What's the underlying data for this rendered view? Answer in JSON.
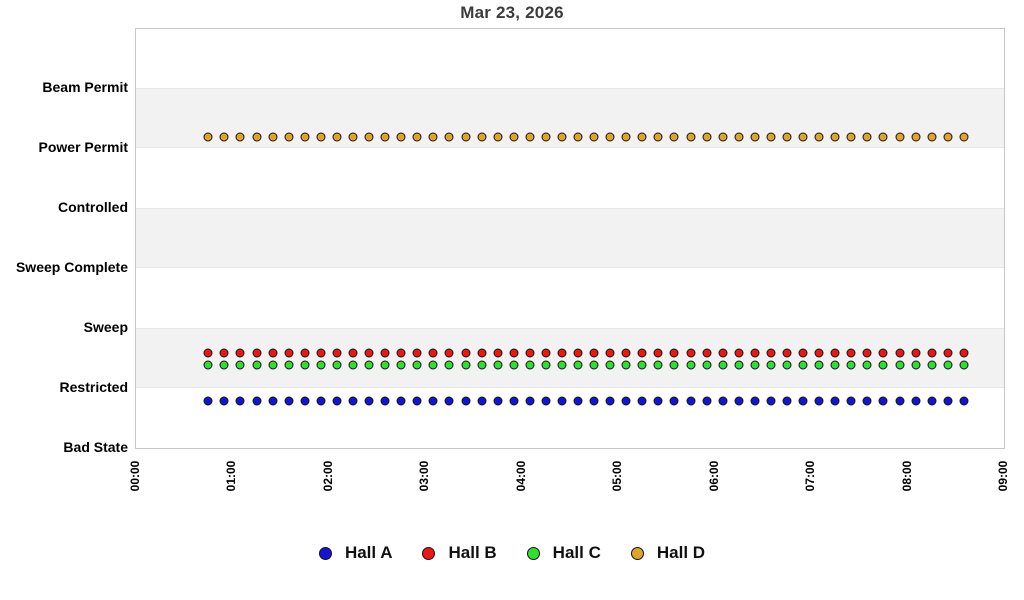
{
  "chart_data": {
    "type": "scatter",
    "title": "Mar 23, 2026",
    "x_axis": {
      "label": "",
      "tick_labels": [
        "00:00",
        "01:00",
        "02:00",
        "03:00",
        "04:00",
        "05:00",
        "06:00",
        "07:00",
        "08:00",
        "09:00"
      ],
      "range_minutes": [
        0,
        540
      ],
      "tick_interval_minutes": 60,
      "grid": false
    },
    "y_axis": {
      "label": "",
      "categories_bottom_to_top": [
        "Bad State",
        "Restricted",
        "Sweep",
        "Sweep Complete",
        "Controlled",
        "Power Permit",
        "Beam Permit"
      ],
      "range_levels": [
        0,
        7
      ],
      "striped_level_bands": [
        [
          1,
          2
        ],
        [
          3,
          4
        ],
        [
          5,
          6
        ]
      ]
    },
    "sample_times": [
      "00:45",
      "00:55",
      "01:05",
      "01:15",
      "01:25",
      "01:35",
      "01:45",
      "01:55",
      "02:05",
      "02:15",
      "02:25",
      "02:35",
      "02:45",
      "02:55",
      "03:05",
      "03:15",
      "03:25",
      "03:35",
      "03:45",
      "03:55",
      "04:05",
      "04:15",
      "04:25",
      "04:35",
      "04:45",
      "04:55",
      "05:05",
      "05:15",
      "05:25",
      "05:35",
      "05:45",
      "05:55",
      "06:05",
      "06:15",
      "06:25",
      "06:35",
      "06:45",
      "06:55",
      "07:05",
      "07:15",
      "07:25",
      "07:35",
      "07:45",
      "07:55",
      "08:05",
      "08:15",
      "08:25",
      "08:35"
    ],
    "series": [
      {
        "name": "Hall A",
        "color": "#1414d4",
        "state": "Restricted",
        "state_level": 1,
        "display_offset": -0.2,
        "display_value": 0.8
      },
      {
        "name": "Hall B",
        "color": "#ee1515",
        "state": "Sweep",
        "state_level": 2,
        "display_offset": -0.4,
        "display_value": 1.6
      },
      {
        "name": "Hall C",
        "color": "#2ee02e",
        "state": "Sweep",
        "state_level": 2,
        "display_offset": -0.6,
        "display_value": 1.4
      },
      {
        "name": "Hall D",
        "color": "#e0a428",
        "state": "Beam Permit",
        "state_level": 6,
        "display_offset": -0.8,
        "display_value": 5.2
      }
    ],
    "legend_position": "bottom-center",
    "colors": {
      "stripe_band": "#f2f2f2",
      "plot_border": "#c9c9c9",
      "title_text": "#3c3c3c",
      "axis_text": "#000000",
      "background": "#ffffff"
    }
  }
}
